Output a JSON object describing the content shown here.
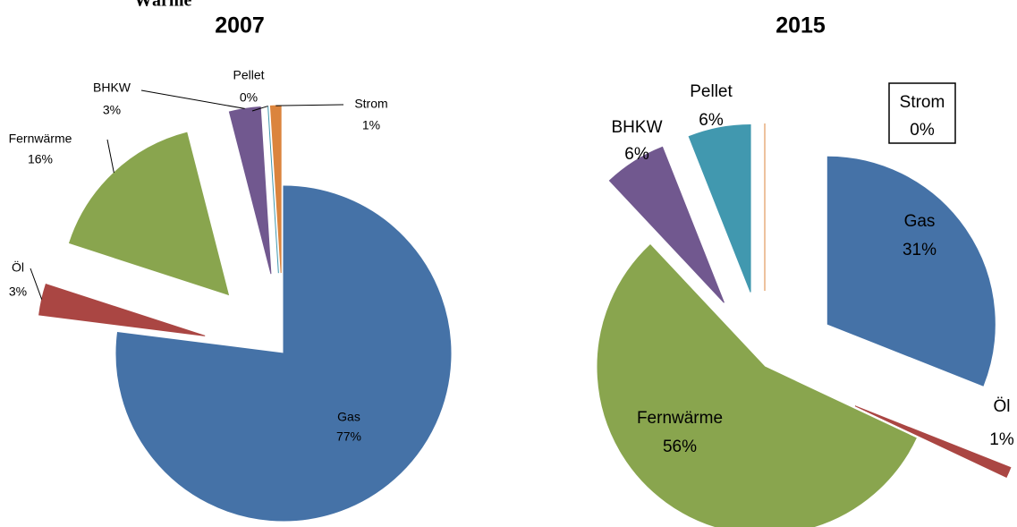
{
  "heading": "Wärme",
  "chart_data": [
    {
      "type": "pie",
      "title": "2007",
      "categories": [
        "Gas",
        "Öl",
        "Fernwärme",
        "BHKW",
        "Pellet",
        "Strom"
      ],
      "values": [
        77,
        3,
        16,
        3,
        0,
        1
      ],
      "value_labels": [
        "77%",
        "3%",
        "16%",
        "3%",
        "0%",
        "1%"
      ],
      "colors": [
        "#4572a7",
        "#aa4643",
        "#89a54e",
        "#71588f",
        "#4198af",
        "#db843d"
      ]
    },
    {
      "type": "pie",
      "title": "2015",
      "categories": [
        "Gas",
        "Öl",
        "Fernwärme",
        "BHKW",
        "Pellet",
        "Strom"
      ],
      "values": [
        31,
        1,
        56,
        6,
        6,
        0
      ],
      "value_labels": [
        "31%",
        "1%",
        "56%",
        "6%",
        "6%",
        "0%"
      ],
      "colors": [
        "#4572a7",
        "#aa4643",
        "#89a54e",
        "#71588f",
        "#4198af",
        "#db843d"
      ]
    }
  ]
}
